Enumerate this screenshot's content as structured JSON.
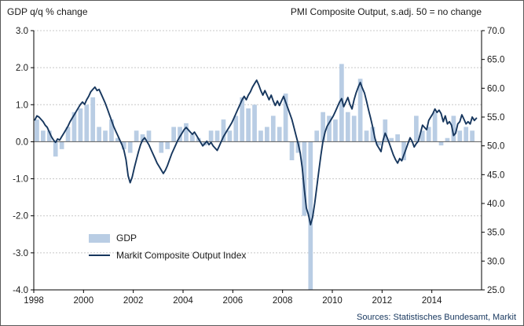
{
  "titles": {
    "left": "GDP q/q % change",
    "right": "PMI Composite Output, s.adj. 50 = no change"
  },
  "legend": {
    "gdp": "GDP",
    "pmi": "Markit Composite Output Index"
  },
  "source": "Sources: Statistisches Bundesamt, Markit",
  "colors": {
    "bar": "#b9cde4",
    "line": "#17375e",
    "grid": "#c8c8c8",
    "zero_line": "#595959",
    "axis": "#000000",
    "source_text": "#17375e"
  },
  "chart_data": {
    "type": "bar+line",
    "title": "",
    "left_axis": {
      "label": "GDP q/q % change",
      "range": [
        -4.0,
        3.0
      ],
      "tick_values": [
        3,
        2,
        1,
        0,
        -1,
        -2,
        -3,
        -4
      ],
      "tick_labels": [
        "3.0",
        "2.0",
        "1.0",
        "0.0",
        "-1.0",
        "-2.0",
        "-3.0",
        "-4.0"
      ]
    },
    "right_axis": {
      "label": "PMI Composite Output, s.adj. 50 = no change",
      "range": [
        25.0,
        70.0
      ],
      "tick_values": [
        70,
        65,
        60,
        55,
        50,
        45,
        40,
        35,
        30,
        25
      ],
      "tick_labels": [
        "70.0",
        "65.0",
        "60.0",
        "55.0",
        "50.0",
        "45.0",
        "40.0",
        "35.0",
        "30.0",
        "25.0"
      ]
    },
    "x_axis": {
      "range": [
        1998,
        2016
      ],
      "tick_years": [
        1998,
        2000,
        2002,
        2004,
        2006,
        2008,
        2010,
        2012,
        2014
      ],
      "tick_labels": [
        "1998",
        "2000",
        "2002",
        "2004",
        "2006",
        "2008",
        "2010",
        "2012",
        "2014"
      ],
      "grid": false
    },
    "gdp": {
      "series_name": "GDP",
      "period": "quarterly",
      "start_year": 1998,
      "values": [
        0.6,
        0.3,
        0.3,
        -0.4,
        -0.2,
        0.4,
        0.8,
        0.9,
        1.0,
        1.2,
        0.4,
        0.3,
        0.6,
        0.1,
        -0.2,
        -0.3,
        0.3,
        0.2,
        0.3,
        0.0,
        -0.3,
        -0.2,
        0.4,
        0.4,
        0.5,
        0.2,
        0.1,
        -0.1,
        0.3,
        0.3,
        0.6,
        0.3,
        0.7,
        1.2,
        0.9,
        1.0,
        0.3,
        0.4,
        0.7,
        0.4,
        1.3,
        -0.5,
        -0.3,
        -2.0,
        -4.5,
        0.3,
        0.8,
        0.7,
        0.6,
        2.1,
        0.8,
        0.7,
        1.7,
        0.3,
        0.4,
        -0.1,
        0.6,
        0.1,
        0.2,
        -0.5,
        0.0,
        0.7,
        0.3,
        0.4,
        0.8,
        -0.1,
        0.1,
        0.7,
        0.3,
        0.4,
        0.3
      ]
    },
    "pmi": {
      "series_name": "Markit Composite Output Index",
      "period": "monthly",
      "start_year": 1998,
      "values": [
        54.5,
        55.2,
        55.0,
        54.6,
        54.2,
        53.6,
        53.2,
        52.4,
        51.6,
        51.0,
        50.6,
        51.2,
        51.0,
        51.6,
        52.2,
        52.8,
        53.4,
        54.2,
        54.8,
        55.4,
        56.0,
        56.6,
        57.2,
        57.6,
        57.2,
        58.0,
        58.6,
        59.4,
        59.8,
        60.2,
        59.6,
        59.8,
        59.0,
        58.2,
        57.4,
        56.4,
        55.4,
        54.4,
        53.4,
        52.6,
        51.8,
        51.0,
        50.2,
        49.2,
        47.6,
        44.8,
        43.6,
        44.6,
        46.2,
        47.6,
        49.0,
        50.2,
        51.0,
        51.4,
        50.8,
        50.2,
        49.4,
        48.6,
        47.8,
        47.0,
        46.4,
        45.8,
        45.2,
        45.8,
        46.6,
        47.6,
        48.6,
        49.4,
        50.2,
        51.0,
        51.6,
        52.2,
        52.8,
        53.2,
        52.8,
        52.4,
        52.0,
        52.4,
        51.8,
        51.2,
        50.6,
        50.0,
        50.4,
        50.8,
        50.2,
        50.6,
        50.0,
        49.6,
        49.2,
        50.0,
        50.8,
        51.6,
        52.2,
        52.8,
        53.4,
        54.0,
        54.8,
        55.6,
        56.4,
        57.2,
        58.0,
        58.6,
        58.0,
        58.8,
        59.4,
        60.2,
        60.8,
        61.4,
        60.6,
        59.6,
        58.8,
        59.6,
        58.8,
        58.0,
        58.8,
        57.8,
        57.0,
        57.8,
        57.0,
        57.8,
        58.6,
        57.6,
        56.6,
        55.6,
        54.6,
        53.2,
        51.8,
        50.4,
        48.8,
        46.2,
        42.4,
        39.2,
        38.0,
        36.3,
        37.6,
        40.0,
        42.8,
        45.6,
        48.4,
        50.8,
        52.4,
        53.4,
        54.0,
        54.6,
        55.2,
        56.0,
        56.8,
        57.6,
        58.2,
        56.8,
        57.6,
        58.4,
        57.2,
        56.4,
        58.0,
        59.2,
        60.2,
        61.0,
        60.0,
        59.2,
        57.8,
        56.2,
        54.8,
        53.2,
        51.4,
        50.2,
        49.6,
        49.0,
        51.0,
        52.2,
        51.4,
        50.4,
        49.4,
        48.4,
        47.6,
        47.0,
        47.8,
        47.4,
        48.4,
        49.4,
        50.4,
        51.4,
        50.8,
        49.8,
        50.4,
        50.8,
        52.2,
        53.6,
        53.2,
        52.8,
        54.4,
        55.0,
        55.6,
        56.4,
        55.8,
        56.2,
        55.6,
        54.2,
        55.2,
        53.8,
        54.2,
        53.6,
        51.8,
        52.2,
        53.8,
        54.2,
        55.4,
        54.6,
        53.8,
        54.2,
        53.8,
        55.0,
        54.4,
        54.8
      ]
    }
  }
}
